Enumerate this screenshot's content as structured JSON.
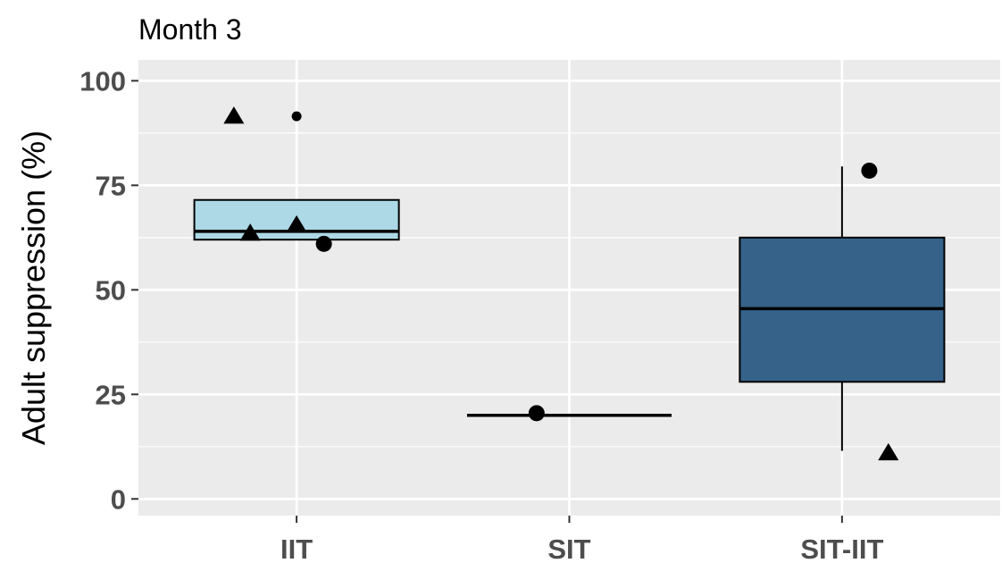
{
  "chart_data": {
    "type": "box",
    "title": "Month 3",
    "xlabel": "",
    "ylabel": "Adult suppression (%)",
    "ylim": [
      -4,
      105
    ],
    "yticks": [
      0,
      25,
      50,
      75,
      100
    ],
    "ytick_labels": [
      "0",
      "25",
      "50",
      "75",
      "100"
    ],
    "categories": [
      "IIT",
      "SIT",
      "SIT-IIT"
    ],
    "grid": true,
    "legend": "none",
    "boxes": [
      {
        "category": "IIT",
        "min": 62,
        "q1": 62,
        "median": 64,
        "q3": 71.5,
        "max": 71.5,
        "color": "#add8e6"
      },
      {
        "category": "SIT",
        "min": 20,
        "q1": 20,
        "median": 20,
        "q3": 20,
        "max": 20,
        "color": "#add8e6"
      },
      {
        "category": "SIT-IIT",
        "min": 11.5,
        "q1": 28,
        "median": 45.5,
        "q3": 62.5,
        "max": 79.5,
        "color": "#36628a"
      }
    ],
    "outliers": [
      {
        "category": "IIT",
        "y": 91.5
      }
    ],
    "points": [
      {
        "category": "IIT",
        "offset": -0.23,
        "y": 91.5,
        "shape": "triangle"
      },
      {
        "category": "IIT",
        "offset": -0.17,
        "y": 63.5,
        "shape": "triangle"
      },
      {
        "category": "IIT",
        "offset": 0.0,
        "y": 65.5,
        "shape": "triangle"
      },
      {
        "category": "IIT",
        "offset": 0.1,
        "y": 61,
        "shape": "circle"
      },
      {
        "category": "SIT",
        "offset": -0.12,
        "y": 20.5,
        "shape": "circle"
      },
      {
        "category": "SIT-IIT",
        "offset": 0.1,
        "y": 78.5,
        "shape": "circle"
      },
      {
        "category": "SIT-IIT",
        "offset": 0.17,
        "y": 11,
        "shape": "triangle"
      }
    ]
  }
}
